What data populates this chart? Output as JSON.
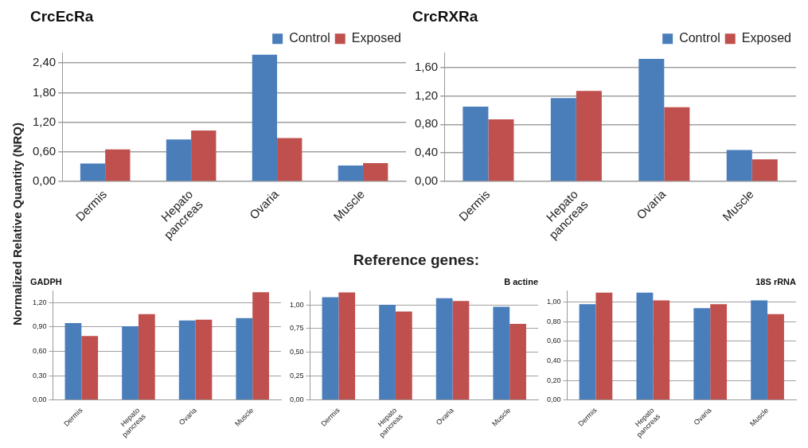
{
  "chart_data": [
    {
      "type": "bar",
      "title": "CrcEcRa",
      "ylabel": "Normalized Relative Quantity (NRQ)",
      "categories": [
        "Dermis",
        "Hepato pancreas",
        "Ovaria",
        "Muscle"
      ],
      "series": [
        {
          "name": "Control",
          "color": "#4a7ebb",
          "values": [
            0.36,
            0.85,
            2.57,
            0.32
          ]
        },
        {
          "name": "Exposed",
          "color": "#c0504d",
          "values": [
            0.65,
            1.03,
            0.88,
            0.37
          ]
        }
      ],
      "ylim": [
        0,
        2.6
      ],
      "yticks": [
        {
          "value": 0,
          "label": "0,00"
        },
        {
          "value": 0.6,
          "label": "0,60"
        },
        {
          "value": 1.2,
          "label": "1,20"
        },
        {
          "value": 1.8,
          "label": "1,80"
        },
        {
          "value": 2.4,
          "label": "2,40"
        }
      ],
      "grid": "y",
      "legend": "top right"
    },
    {
      "type": "bar",
      "title": "CrcRXRa",
      "categories": [
        "Dermis",
        "Hepato pancreas",
        "Ovaria",
        "Muscle"
      ],
      "series": [
        {
          "name": "Control",
          "color": "#4a7ebb",
          "values": [
            1.05,
            1.17,
            1.72,
            0.44
          ]
        },
        {
          "name": "Exposed",
          "color": "#c0504d",
          "values": [
            0.87,
            1.27,
            1.04,
            0.31
          ]
        }
      ],
      "ylim": [
        0,
        1.8
      ],
      "yticks": [
        {
          "value": 0,
          "label": "0,00"
        },
        {
          "value": 0.4,
          "label": "0,40"
        },
        {
          "value": 0.8,
          "label": "0,80"
        },
        {
          "value": 1.2,
          "label": "1,20"
        },
        {
          "value": 1.6,
          "label": "1,60"
        }
      ],
      "grid": "y",
      "legend": "top right"
    },
    {
      "type": "other",
      "title": "Reference genes:"
    },
    {
      "type": "bar",
      "title": "GADPH",
      "categories": [
        "Dermis",
        "Hepato pancreas",
        "Ovaria",
        "Muscle"
      ],
      "series": [
        {
          "color": "#4a7ebb",
          "values": [
            0.95,
            0.91,
            0.98,
            1.01
          ]
        },
        {
          "color": "#c0504d",
          "values": [
            0.79,
            1.06,
            0.99,
            1.33
          ]
        }
      ],
      "ylim": [
        0,
        1.35
      ],
      "yticks": [
        {
          "value": 0,
          "label": "0,00"
        },
        {
          "value": 0.3,
          "label": "0,30"
        },
        {
          "value": 0.6,
          "label": "0,60"
        },
        {
          "value": 0.9,
          "label": "0,90"
        },
        {
          "value": 1.2,
          "label": "1,20"
        }
      ],
      "grid": "y"
    },
    {
      "type": "bar",
      "title": "B actine",
      "categories": [
        "Dermis",
        "Hepato pancreas",
        "Ovaria",
        "Muscle"
      ],
      "series": [
        {
          "color": "#4a7ebb",
          "values": [
            1.08,
            1.0,
            1.07,
            0.98
          ]
        },
        {
          "color": "#c0504d",
          "values": [
            1.13,
            0.93,
            1.04,
            0.8
          ]
        }
      ],
      "ylim": [
        0,
        1.15
      ],
      "yticks": [
        {
          "value": 0,
          "label": "0,00"
        },
        {
          "value": 0.25,
          "label": "0,25"
        },
        {
          "value": 0.5,
          "label": "0,50"
        },
        {
          "value": 0.75,
          "label": "0,75"
        },
        {
          "value": 1,
          "label": "1,00"
        }
      ],
      "grid": "y"
    },
    {
      "type": "bar",
      "title": "18S rRNA",
      "categories": [
        "Dermis",
        "Hepato pancreas",
        "Ovaria",
        "Muscle"
      ],
      "series": [
        {
          "color": "#4a7ebb",
          "values": [
            0.98,
            1.1,
            0.94,
            1.02
          ]
        },
        {
          "color": "#c0504d",
          "values": [
            1.1,
            1.02,
            0.98,
            0.88
          ]
        }
      ],
      "ylim": [
        0,
        1.12
      ],
      "yticks": [
        {
          "value": 0,
          "label": "0,00"
        },
        {
          "value": 0.2,
          "label": "0,20"
        },
        {
          "value": 0.4,
          "label": "0,40"
        },
        {
          "value": 0.6,
          "label": "0,60"
        },
        {
          "value": 0.8,
          "label": "0,80"
        },
        {
          "value": 1,
          "label": "1,00"
        }
      ],
      "grid": "y"
    }
  ]
}
